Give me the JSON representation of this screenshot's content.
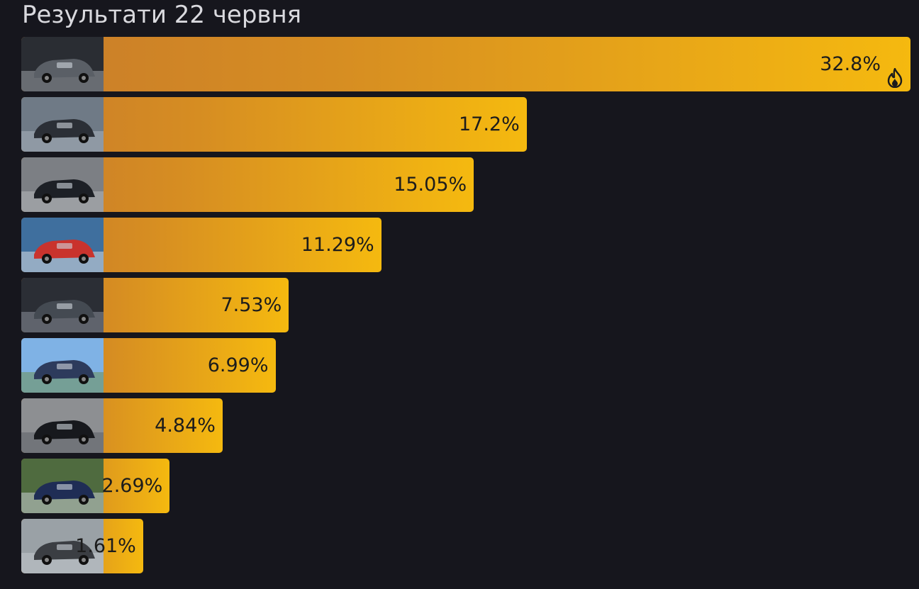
{
  "title": "Результати 22 червня",
  "colors": {
    "background": "#16161d",
    "bar_start": "#c97d2a",
    "bar_end": "#f5b90f",
    "text": "#1c1c1c",
    "title": "#d9d9de"
  },
  "chart_data": {
    "type": "bar",
    "orientation": "horizontal",
    "title": "Результати 22 червня",
    "xlabel": "",
    "ylabel": "",
    "xlim": [
      0,
      32.8
    ],
    "grid": false,
    "series": [
      {
        "values": [
          32.8,
          17.2,
          15.05,
          11.29,
          7.53,
          6.99,
          4.84,
          2.69,
          1.61
        ]
      }
    ],
    "labels": [
      "32.8%",
      "17.2%",
      "15.05%",
      "11.29%",
      "7.53%",
      "6.99%",
      "4.84%",
      "2.69%",
      "1.61%"
    ],
    "thumbnails": [
      "car-photo-icon",
      "car-photo-icon",
      "car-photo-icon",
      "car-photo-icon",
      "car-photo-icon",
      "car-photo-icon",
      "car-photo-icon",
      "car-photo-icon",
      "car-photo-icon"
    ],
    "leader_badge": "fire-icon"
  }
}
